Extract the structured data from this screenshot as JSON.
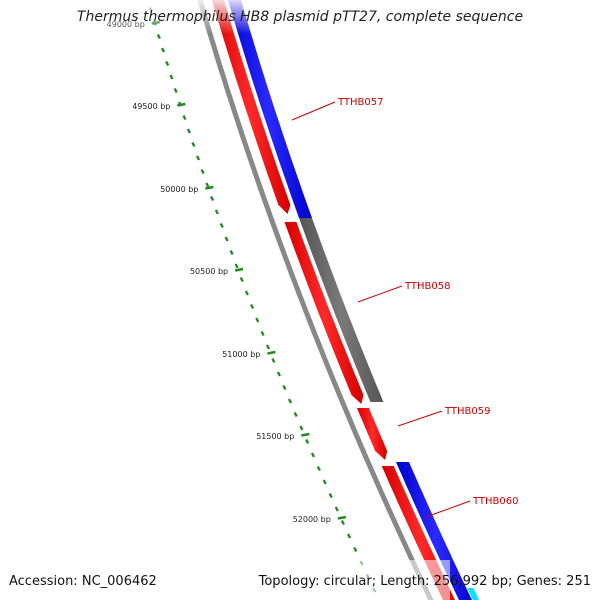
{
  "title": "Thermus thermophilus HB8 plasmid pTT27, complete sequence",
  "footer": {
    "accession_label": "Accession:",
    "accession": "NC_006462",
    "topology_label": "Topology:",
    "topology": "circular",
    "length_label": "Length:",
    "length": "256,992 bp",
    "genes_label": "Genes:",
    "genes": "251"
  },
  "ruler_ticks": [
    {
      "label": "49000 bp"
    },
    {
      "label": "49500 bp"
    },
    {
      "label": "50000 bp"
    },
    {
      "label": "50500 bp"
    },
    {
      "label": "51000 bp"
    },
    {
      "label": "51500 bp"
    },
    {
      "label": "52000 bp"
    }
  ],
  "genes": [
    {
      "label": "TTHB057",
      "color": "#0000ff",
      "track": "outer"
    },
    {
      "label": "TTHB058",
      "color": "#666666",
      "track": "outer"
    },
    {
      "label": "TTHB059",
      "color": "#ff0000",
      "track": "inner"
    },
    {
      "label": "TTHB060",
      "color": "#0000ff",
      "track": "outer"
    }
  ],
  "colors": {
    "forward_gene": "#0000ff",
    "reverse_gene": "#ff0000",
    "other_gene": "#666666",
    "backbone": "#888888",
    "ruler_dots": "#228B22",
    "gene_label": "#cc0000",
    "edge_gene": "#00e5ff"
  }
}
